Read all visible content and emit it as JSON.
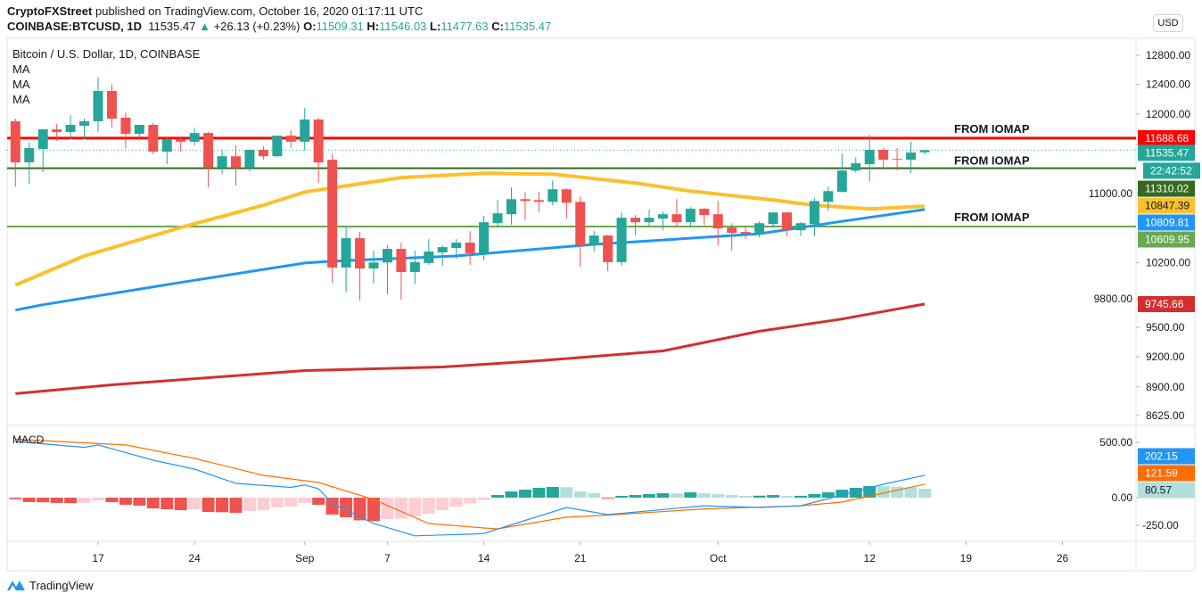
{
  "header": {
    "author": "CryptoFXStreet",
    "published": "published on TradingView.com, October 16, 2020 01:17:11 UTC",
    "symbol": "COINBASE:BTCUSD, 1D",
    "price": "11535.47",
    "change": "+26.13 (+0.23%)",
    "o_label": "O:",
    "o_value": "11509.31",
    "h_label": "H:",
    "h_value": "11546.03",
    "l_label": "L:",
    "l_value": "11477.63",
    "c_label": "C:",
    "c_value": "11535.47"
  },
  "currency_button": "USD",
  "branding": "TradingView",
  "colors": {
    "bull": "#26a69a",
    "bear": "#ef5350",
    "bull_light": "#b2dfdb",
    "bear_light": "#ffcdd2",
    "grid": "#e0e3eb"
  },
  "chart_data": {
    "type": "candlestick",
    "title": "Bitcoin / U.S. Dollar, 1D, COINBASE",
    "start_date": "2020-08-11",
    "x_unit": "day index from start_date",
    "y_scale": "log",
    "candles_ohlc": [
      [
        11907,
        11941,
        11085,
        11382
      ],
      [
        11382,
        11631,
        11117,
        11563
      ],
      [
        11551,
        11802,
        11262,
        11802
      ],
      [
        11802,
        11872,
        11655,
        11767
      ],
      [
        11767,
        11989,
        11676,
        11860
      ],
      [
        11848,
        11941,
        11676,
        11907
      ],
      [
        11907,
        12491,
        11767,
        12309
      ],
      [
        12309,
        12400,
        11826,
        11941
      ],
      [
        11953,
        12024,
        11563,
        11744
      ],
      [
        11744,
        11860,
        11665,
        11860
      ],
      [
        11860,
        11884,
        11483,
        11517
      ],
      [
        11517,
        11699,
        11359,
        11676
      ],
      [
        11676,
        11711,
        11517,
        11643
      ],
      [
        11643,
        11826,
        11597,
        11755
      ],
      [
        11755,
        11767,
        11074,
        11314
      ],
      [
        11314,
        11540,
        11237,
        11459
      ],
      [
        11459,
        11597,
        11096,
        11314
      ],
      [
        11314,
        11540,
        11270,
        11540
      ],
      [
        11540,
        11586,
        11415,
        11459
      ],
      [
        11459,
        11721,
        11448,
        11721
      ],
      [
        11721,
        11790,
        11563,
        11643
      ],
      [
        11643,
        12082,
        11528,
        11930
      ],
      [
        11930,
        11953,
        11128,
        11382
      ],
      [
        11415,
        11494,
        9978,
        10143
      ],
      [
        10143,
        10618,
        9871,
        10475
      ],
      [
        10475,
        10547,
        9785,
        10133
      ],
      [
        10133,
        10333,
        9969,
        10200
      ],
      [
        10200,
        10394,
        9852,
        10353
      ],
      [
        10353,
        10424,
        9795,
        10094
      ],
      [
        10094,
        10333,
        9959,
        10204
      ],
      [
        10194,
        10465,
        10174,
        10323
      ],
      [
        10313,
        10394,
        10164,
        10373
      ],
      [
        10363,
        10465,
        10243,
        10424
      ],
      [
        10424,
        10557,
        10174,
        10303
      ],
      [
        10303,
        10733,
        10223,
        10660
      ],
      [
        10649,
        10922,
        10598,
        10765
      ],
      [
        10754,
        11074,
        10629,
        10933
      ],
      [
        10933,
        11019,
        10681,
        10911
      ],
      [
        10922,
        11019,
        10775,
        10900
      ],
      [
        10900,
        11160,
        10857,
        11052
      ],
      [
        11052,
        11063,
        10702,
        10890
      ],
      [
        10900,
        10966,
        10153,
        10394
      ],
      [
        10394,
        10557,
        10323,
        10506
      ],
      [
        10506,
        10516,
        10104,
        10204
      ],
      [
        10204,
        10775,
        10163,
        10712
      ],
      [
        10712,
        10744,
        10506,
        10660
      ],
      [
        10660,
        10807,
        10618,
        10712
      ],
      [
        10702,
        10786,
        10567,
        10754
      ],
      [
        10754,
        10933,
        10598,
        10660
      ],
      [
        10660,
        10838,
        10608,
        10818
      ],
      [
        10818,
        10828,
        10629,
        10744
      ],
      [
        10754,
        10911,
        10394,
        10588
      ],
      [
        10598,
        10649,
        10333,
        10536
      ],
      [
        10547,
        10598,
        10465,
        10526
      ],
      [
        10516,
        10670,
        10485,
        10649
      ],
      [
        10639,
        10775,
        10598,
        10775
      ],
      [
        10775,
        10775,
        10496,
        10578
      ],
      [
        10567,
        10660,
        10506,
        10649
      ],
      [
        10639,
        10944,
        10496,
        10911
      ],
      [
        10900,
        11085,
        10796,
        11030
      ],
      [
        11019,
        11494,
        11019,
        11281
      ],
      [
        11281,
        11448,
        11259,
        11371
      ],
      [
        11359,
        11733,
        11149,
        11540
      ],
      [
        11540,
        11563,
        11304,
        11415
      ],
      [
        11426,
        11563,
        11281,
        11415
      ],
      [
        11415,
        11643,
        11248,
        11506
      ],
      [
        11509.31,
        11546.03,
        11477.63,
        11535.47
      ]
    ],
    "moving_averages": [
      {
        "name": "MA",
        "color": "#fbc02d",
        "last_label": "10847.39",
        "points": [
          [
            0,
            9951
          ],
          [
            5,
            10273
          ],
          [
            12,
            10598
          ],
          [
            18,
            10860
          ],
          [
            21,
            11019
          ],
          [
            28,
            11195
          ],
          [
            34,
            11248
          ],
          [
            39,
            11237
          ],
          [
            45,
            11128
          ],
          [
            49,
            11030
          ],
          [
            55,
            10922
          ],
          [
            58,
            10860
          ],
          [
            62,
            10817
          ],
          [
            66,
            10847.39
          ]
        ]
      },
      {
        "name": "MA",
        "color": "#2196f3",
        "last_label": "10809.81",
        "points": [
          [
            0,
            9681
          ],
          [
            2,
            9738
          ],
          [
            12,
            9979
          ],
          [
            21,
            10194
          ],
          [
            23,
            10214
          ],
          [
            32,
            10273
          ],
          [
            42,
            10404
          ],
          [
            45,
            10434
          ],
          [
            54,
            10526
          ],
          [
            60,
            10670
          ],
          [
            66,
            10809.81
          ]
        ]
      },
      {
        "name": "MA",
        "color": "#d32f2f",
        "last_label": "9745.66",
        "points": [
          [
            0,
            8834
          ],
          [
            7,
            8920
          ],
          [
            14,
            8990
          ],
          [
            21,
            9061
          ],
          [
            31,
            9096
          ],
          [
            38,
            9159
          ],
          [
            47,
            9258
          ],
          [
            54,
            9460
          ],
          [
            60,
            9587
          ],
          [
            66,
            9745.66
          ]
        ]
      }
    ],
    "levels": [
      {
        "label": "FROM IOMAP",
        "value": 11688.68,
        "value_label": "11688.68",
        "color": "#ff0000",
        "label_color": "#ff0000"
      },
      {
        "label": "FROM IOMAP",
        "value": 11310.02,
        "value_label": "11310.02",
        "color": "#33691e",
        "label_color": "#33691e"
      },
      {
        "label": "FROM IOMAP",
        "value": 10609.95,
        "value_label": "10609.95",
        "color": "#6aa84f",
        "label_color": "#6aa84f"
      }
    ],
    "last_price": {
      "value": 11535.47,
      "label": "11535.47",
      "countdown": "22:42:52"
    },
    "y_ticks": [
      {
        "value": 12800,
        "label": "12800.00"
      },
      {
        "value": 12400,
        "label": "12400.00"
      },
      {
        "value": 12000,
        "label": "12000.00"
      },
      {
        "value": 11000,
        "label": "11000.00"
      },
      {
        "value": 10200,
        "label": "10200.00"
      },
      {
        "value": 9800,
        "label": "9800.00"
      },
      {
        "value": 9500,
        "label": "9500.00"
      },
      {
        "value": 9200,
        "label": "9200.00"
      },
      {
        "value": 8900,
        "label": "8900.00"
      },
      {
        "value": 8625,
        "label": "8625.00"
      }
    ],
    "x_ticks": [
      {
        "i": 6,
        "label": "17"
      },
      {
        "i": 13,
        "label": "24"
      },
      {
        "i": 21,
        "label": "Sep"
      },
      {
        "i": 27,
        "label": "7"
      },
      {
        "i": 34,
        "label": "14"
      },
      {
        "i": 41,
        "label": "21"
      },
      {
        "i": 51,
        "label": "Oct"
      },
      {
        "i": 62,
        "label": "12"
      },
      {
        "i": 69,
        "label": "19"
      },
      {
        "i": 76,
        "label": "26"
      }
    ],
    "macd": {
      "title": "MACD",
      "histogram": [
        -13,
        -40,
        -42,
        -48,
        -50,
        -46,
        -24,
        -40,
        -64,
        -72,
        -97,
        -105,
        -113,
        -105,
        -129,
        -132,
        -137,
        -121,
        -113,
        -89,
        -81,
        -48,
        -64,
        -153,
        -177,
        -205,
        -212,
        -194,
        -190,
        -169,
        -145,
        -113,
        -81,
        -52,
        -21,
        24,
        56,
        72,
        89,
        97,
        95,
        56,
        40,
        -3,
        16,
        24,
        32,
        40,
        38,
        48,
        40,
        32,
        24,
        16,
        18,
        24,
        16,
        17,
        32,
        48,
        72,
        89,
        105,
        104,
        100,
        92,
        80.57
      ],
      "macd_line": {
        "color": "#2196f3",
        "label": "202.15",
        "points": [
          [
            0,
            508
          ],
          [
            5,
            455
          ],
          [
            6,
            477
          ],
          [
            10,
            339
          ],
          [
            13,
            258
          ],
          [
            16,
            129
          ],
          [
            20,
            93
          ],
          [
            21,
            115
          ],
          [
            22,
            81
          ],
          [
            23,
            -52
          ],
          [
            26,
            -234
          ],
          [
            29,
            -345
          ],
          [
            33,
            -330
          ],
          [
            34,
            -323
          ],
          [
            40,
            -89
          ],
          [
            43,
            -153
          ],
          [
            50,
            -73
          ],
          [
            54,
            -89
          ],
          [
            57,
            -73
          ],
          [
            63,
            121
          ],
          [
            66,
            202.15
          ]
        ]
      },
      "signal_line": {
        "color": "#ff6d00",
        "label": "121.59",
        "points": [
          [
            0,
            528
          ],
          [
            8,
            477
          ],
          [
            13,
            355
          ],
          [
            18,
            202
          ],
          [
            22,
            137
          ],
          [
            26,
            -16
          ],
          [
            30,
            -234
          ],
          [
            34,
            -274
          ],
          [
            35,
            -282
          ],
          [
            40,
            -177
          ],
          [
            43,
            -158
          ],
          [
            50,
            -102
          ],
          [
            57,
            -73
          ],
          [
            60,
            -40
          ],
          [
            66,
            121.59
          ]
        ]
      },
      "histogram_label": "80.57",
      "y_ticks": [
        {
          "value": 500,
          "label": "500.00"
        },
        {
          "value": 0,
          "label": "0.00"
        },
        {
          "value": -250,
          "label": "-250.00"
        }
      ]
    }
  }
}
